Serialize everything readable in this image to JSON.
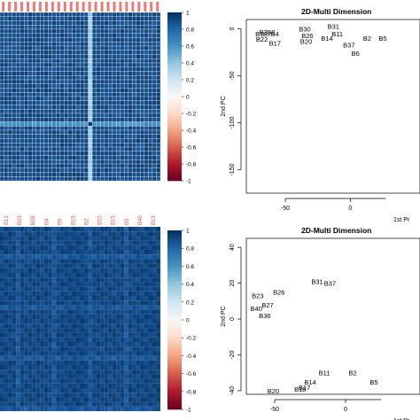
{
  "chart_data": [
    {
      "id": "heatmap_top",
      "type": "heatmap",
      "title": "",
      "colorbar": {
        "ticks": [
          1,
          0.8,
          0.6,
          0.4,
          0.2,
          0,
          -0.2,
          -0.4,
          -0.6,
          -0.8,
          -1
        ],
        "tick_labels": [
          "1",
          "0.8",
          "0.6",
          "0.4",
          "0.2",
          "0",
          "-0.2",
          "-0.4",
          "-0.6",
          "-0.8",
          "-1"
        ],
        "colors": [
          "#67001f",
          "#b2182b",
          "#d6604d",
          "#f4a582",
          "#fddbc7",
          "#f7f7f7",
          "#d1e5f0",
          "#92c5de",
          "#4393c3",
          "#2166ac",
          "#053061"
        ]
      },
      "column_labels_color": "#e05050",
      "n_rows": 40,
      "n_cols": 40,
      "values_note": "mostly near 0.9; one highlighted column near 0.3; one dark cell near 1.0"
    },
    {
      "id": "mds_top",
      "type": "scatter",
      "title": "2D-Multi Dimension",
      "xlabel": "1st Pr",
      "ylabel": "2nd PC",
      "xlim": [
        -80,
        40
      ],
      "ylim": [
        -175,
        10
      ],
      "xticks": [
        -50,
        0
      ],
      "yticks": [
        0,
        -50,
        -100,
        -150
      ],
      "points": [
        {
          "label": "B30",
          "x": -35,
          "y": 0
        },
        {
          "label": "B31",
          "x": -13,
          "y": 3
        },
        {
          "label": "B11",
          "x": -10,
          "y": -5
        },
        {
          "label": "B26",
          "x": -33,
          "y": -7
        },
        {
          "label": "B20",
          "x": -34,
          "y": -13
        },
        {
          "label": "B22",
          "x": -68,
          "y": -11
        },
        {
          "label": "B17",
          "x": -58,
          "y": -15
        },
        {
          "label": "B14",
          "x": -18,
          "y": -10
        },
        {
          "label": "B37",
          "x": -1,
          "y": -17
        },
        {
          "label": "B2",
          "x": 13,
          "y": -10
        },
        {
          "label": "B5",
          "x": 25,
          "y": -10
        },
        {
          "label": "B6",
          "x": 4,
          "y": -26
        }
      ],
      "cluster_labels": [
        "B1",
        "B3",
        "B7",
        "B8",
        "B4"
      ]
    },
    {
      "id": "heatmap_bottom",
      "type": "heatmap",
      "title": "",
      "column_labels": [
        "B13",
        "B23",
        "B28",
        "B4",
        "B9",
        "B19",
        "B2",
        "B10",
        "B15",
        "B5",
        "B40",
        "B13"
      ],
      "column_labels_color": "#e05050",
      "colorbar": {
        "ticks": [
          1,
          0.8,
          0.6,
          0.4,
          0.2,
          0,
          -0.2,
          -0.4,
          -0.6,
          -0.8,
          -1
        ],
        "tick_labels": [
          "1",
          "0.8",
          "0.6",
          "0.4",
          "0.2",
          "0",
          "-0.2",
          "-0.4",
          "-0.6",
          "-0.8",
          "-1"
        ]
      },
      "n_rows": 40,
      "n_cols": 40,
      "values_note": "all values roughly 0.85 to 0.98, uniform dark blue with subtle banding"
    },
    {
      "id": "mds_bottom",
      "type": "scatter",
      "title": "2D-Multi Dimension",
      "xlabel": "1st Pr",
      "ylabel": "2nd PC",
      "xlim": [
        -70,
        40
      ],
      "ylim": [
        -42,
        45
      ],
      "xticks": [
        -50,
        0
      ],
      "yticks": [
        40,
        20,
        0,
        -20,
        -40
      ],
      "points": [
        {
          "label": "B31",
          "x": -20,
          "y": 21
        },
        {
          "label": "B37",
          "x": -11,
          "y": 20
        },
        {
          "label": "B23",
          "x": -62,
          "y": 13
        },
        {
          "label": "B26",
          "x": -47,
          "y": 15
        },
        {
          "label": "B27",
          "x": -55,
          "y": 8
        },
        {
          "label": "B40",
          "x": -63,
          "y": 6
        },
        {
          "label": "B36",
          "x": -57,
          "y": 2
        },
        {
          "label": "B11",
          "x": -15,
          "y": -30
        },
        {
          "label": "B2",
          "x": 5,
          "y": -30
        },
        {
          "label": "B14",
          "x": -25,
          "y": -35
        },
        {
          "label": "B5",
          "x": 20,
          "y": -35
        },
        {
          "label": "B17",
          "x": -29,
          "y": -38
        },
        {
          "label": "B18",
          "x": -32,
          "y": -39
        },
        {
          "label": "B20",
          "x": -51,
          "y": -40
        }
      ]
    }
  ]
}
